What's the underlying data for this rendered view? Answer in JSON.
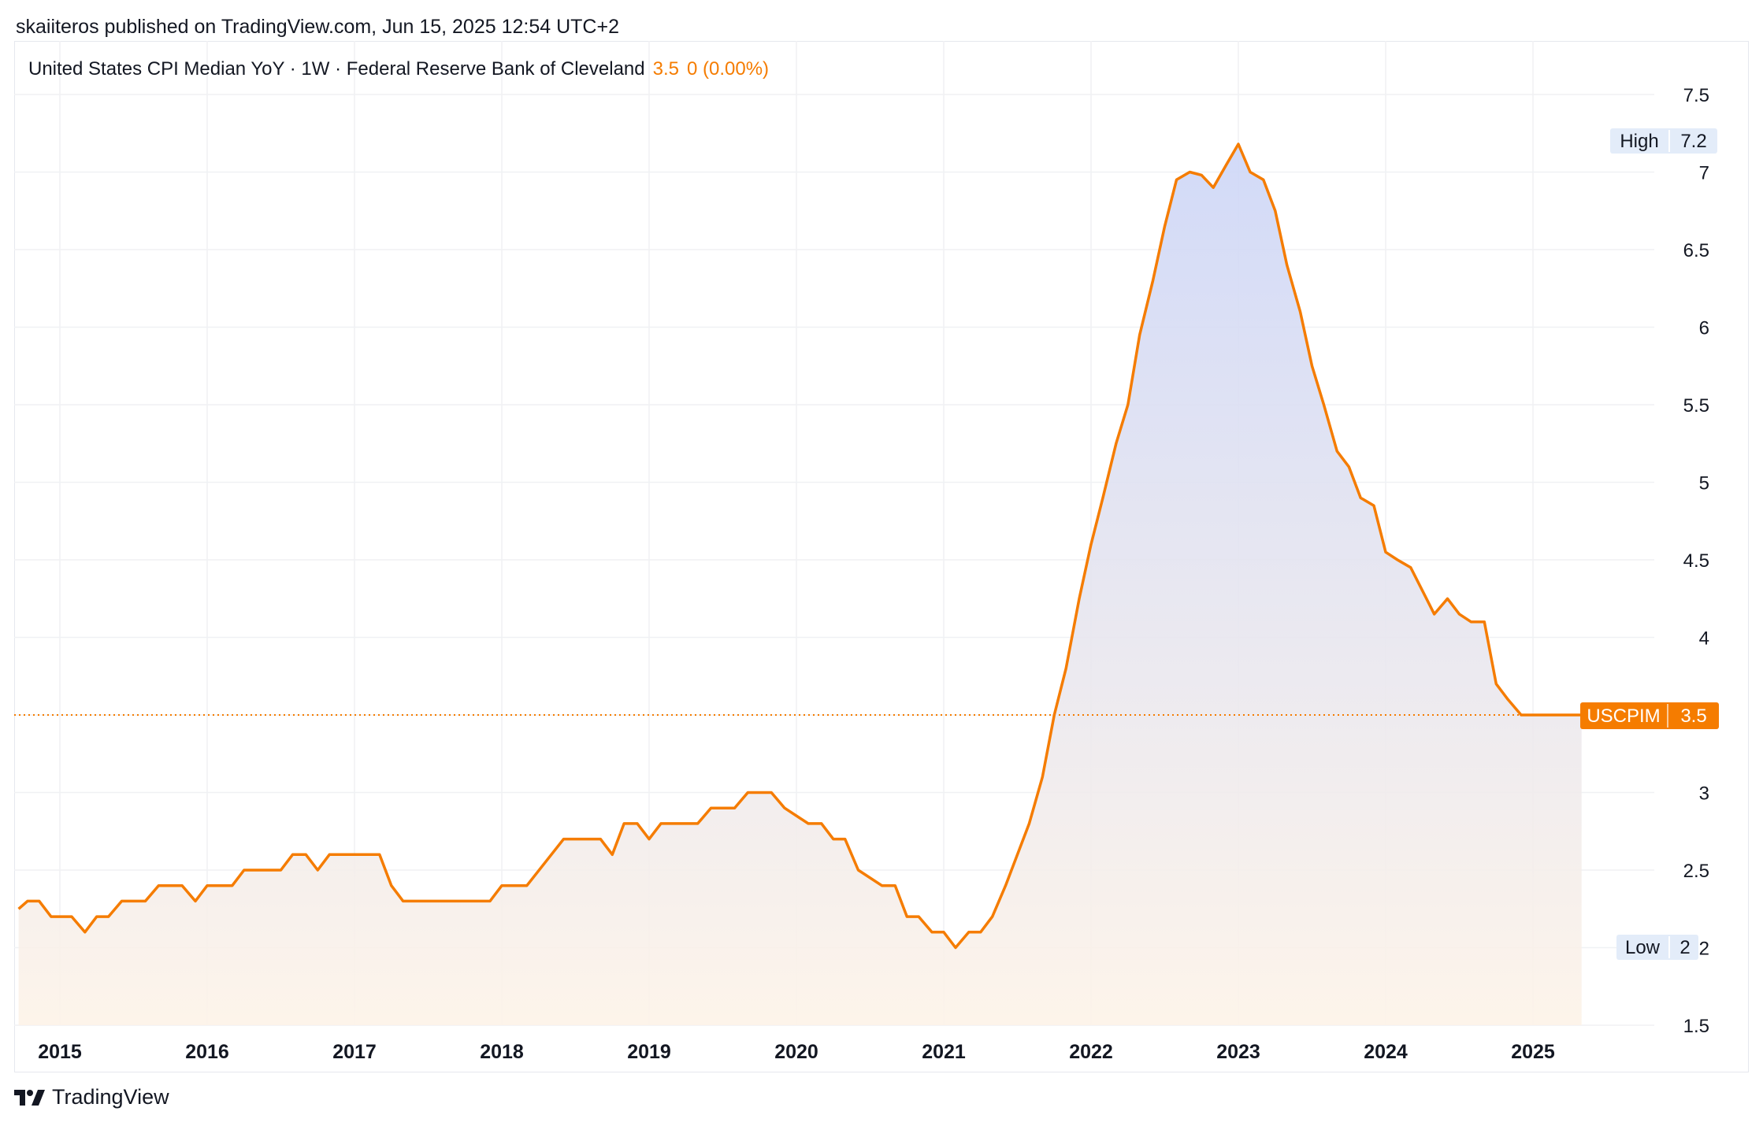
{
  "header": {
    "publisher_line": "skaiiteros published on TradingView.com, Jun 15, 2025 12:54 UTC+2"
  },
  "legend": {
    "title": "United States CPI Median YoY · 1W · Federal Reserve Bank of Cleveland",
    "last_value": "3.5",
    "change": "0 (0.00%)"
  },
  "tags": {
    "high_label": "High",
    "high_value": "7.2",
    "low_label": "Low",
    "low_value": "2",
    "symbol": "USCPIM",
    "current_value": "3.5"
  },
  "footer": {
    "brand": "TradingView"
  },
  "colors": {
    "line": "#f57c00",
    "fill_top": "#cdd6f7",
    "fill_bottom": "#fdf3e8",
    "grid": "#f0f1f4",
    "tag_bg": "#e3ecf9"
  },
  "chart_data": {
    "type": "area",
    "title": "United States CPI Median YoY · 1W · Federal Reserve Bank of Cleveland",
    "xlabel": "",
    "ylabel": "",
    "x_ticks": [
      "2015",
      "2016",
      "2017",
      "2018",
      "2019",
      "2020",
      "2021",
      "2022",
      "2023",
      "2024",
      "2025"
    ],
    "y_ticks": [
      "1.5",
      "2",
      "2.5",
      "3",
      "3.5",
      "4",
      "4.5",
      "5",
      "5.5",
      "6",
      "6.5",
      "7",
      "7.5"
    ],
    "ylim": [
      1.5,
      7.5
    ],
    "xlim": [
      2014.72,
      2026.05
    ],
    "grid": true,
    "series": [
      {
        "x": [
          2014.72,
          2014.78,
          2014.86,
          2014.94,
          2015.0,
          2015.08,
          2015.17,
          2015.25,
          2015.33,
          2015.42,
          2015.58,
          2015.67,
          2015.83,
          2015.92,
          2016.0,
          2016.17,
          2016.25,
          2016.5,
          2016.58,
          2016.67,
          2016.75,
          2016.83,
          2017.17,
          2017.25,
          2017.33,
          2017.92,
          2018.0,
          2018.17,
          2018.42,
          2018.67,
          2018.75,
          2018.83,
          2018.92,
          2019.0,
          2019.08,
          2019.33,
          2019.42,
          2019.58,
          2019.67,
          2019.83,
          2019.92,
          2020.08,
          2020.17,
          2020.25,
          2020.33,
          2020.42,
          2020.58,
          2020.67,
          2020.75,
          2020.83,
          2020.92,
          2021.0,
          2021.08,
          2021.17,
          2021.25,
          2021.33,
          2021.42,
          2021.58,
          2021.67,
          2021.75,
          2021.83,
          2021.92,
          2022.0,
          2022.08,
          2022.17,
          2022.25,
          2022.33,
          2022.42,
          2022.5,
          2022.58,
          2022.67,
          2022.75,
          2022.83,
          2022.92,
          2023.0,
          2023.08,
          2023.17,
          2023.25,
          2023.33,
          2023.42,
          2023.5,
          2023.58,
          2023.67,
          2023.75,
          2023.83,
          2023.92,
          2024.0,
          2024.08,
          2024.17,
          2024.25,
          2024.33,
          2024.42,
          2024.5,
          2024.58,
          2024.67,
          2024.75,
          2024.83,
          2024.92,
          2025.0,
          2025.08,
          2025.17,
          2025.25,
          2025.33
        ],
        "values": [
          2.25,
          2.3,
          2.3,
          2.2,
          2.2,
          2.2,
          2.1,
          2.2,
          2.2,
          2.3,
          2.3,
          2.4,
          2.4,
          2.3,
          2.4,
          2.4,
          2.5,
          2.5,
          2.6,
          2.6,
          2.5,
          2.6,
          2.6,
          2.4,
          2.3,
          2.3,
          2.4,
          2.4,
          2.7,
          2.7,
          2.6,
          2.8,
          2.8,
          2.7,
          2.8,
          2.8,
          2.9,
          2.9,
          3.0,
          3.0,
          2.9,
          2.8,
          2.8,
          2.7,
          2.7,
          2.5,
          2.4,
          2.4,
          2.2,
          2.2,
          2.1,
          2.1,
          2.0,
          2.1,
          2.1,
          2.2,
          2.4,
          2.8,
          3.1,
          3.5,
          3.8,
          4.25,
          4.6,
          4.9,
          5.25,
          5.5,
          5.95,
          6.3,
          6.65,
          6.95,
          7.0,
          6.98,
          6.9,
          7.05,
          7.18,
          7.0,
          6.95,
          6.75,
          6.4,
          6.1,
          5.75,
          5.5,
          5.2,
          5.1,
          4.9,
          4.85,
          4.55,
          4.5,
          4.45,
          4.3,
          4.15,
          4.25,
          4.15,
          4.1,
          4.1,
          3.7,
          3.6,
          3.5,
          3.5,
          3.5,
          3.5,
          3.5,
          3.5
        ]
      }
    ]
  }
}
